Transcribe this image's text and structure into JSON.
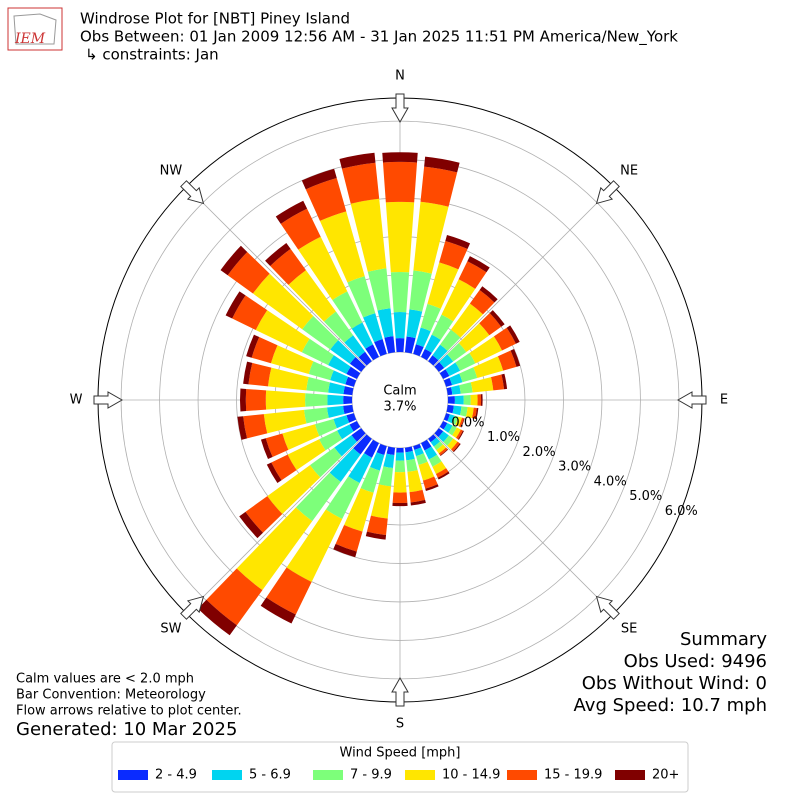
{
  "chart_data": {
    "type": "windrose",
    "title": "Windrose Plot for [NBT] Piney Island",
    "subtitle": "Obs Between: 01 Jan 2009 12:56 AM - 31 Jan 2025 11:51 PM America/New_York",
    "constraint": "↳ constraints: Jan",
    "logo_text": "IEM",
    "calm_label": "Calm",
    "calm_value_label": "3.7%",
    "compass_labels": [
      "N",
      "NE",
      "E",
      "SE",
      "S",
      "SW",
      "W",
      "NW"
    ],
    "x": [
      0,
      10,
      20,
      30,
      40,
      50,
      60,
      70,
      80,
      90,
      100,
      110,
      120,
      130,
      140,
      150,
      160,
      170,
      180,
      190,
      200,
      210,
      220,
      230,
      240,
      250,
      260,
      270,
      280,
      290,
      300,
      310,
      320,
      330,
      340,
      350
    ],
    "ylim": [
      0,
      6.6
    ],
    "yticks": [
      {
        "value": 0,
        "label": "0.0%"
      },
      {
        "value": 1,
        "label": "1.0%"
      },
      {
        "value": 2,
        "label": "2.0%"
      },
      {
        "value": 3,
        "label": "3.0%"
      },
      {
        "value": 4,
        "label": "4.0%"
      },
      {
        "value": 5,
        "label": "5.0%"
      },
      {
        "value": 6,
        "label": "6.0%"
      }
    ],
    "grid": true,
    "legend_title": "Wind Speed [mph]",
    "series": [
      {
        "name": "2 - 4.9",
        "color": "#0a2bff",
        "values": [
          0.36,
          0.41,
          0.26,
          0.23,
          0.19,
          0.17,
          0.18,
          0.16,
          0.12,
          0.18,
          0.16,
          0.1,
          0.12,
          0.14,
          0.11,
          0.21,
          0.1,
          0.12,
          0.12,
          0.19,
          0.24,
          0.42,
          0.5,
          0.31,
          0.21,
          0.2,
          0.24,
          0.23,
          0.23,
          0.23,
          0.3,
          0.36,
          0.3,
          0.36,
          0.4,
          0.42
        ]
      },
      {
        "name": "5 - 6.9",
        "color": "#00d4f0",
        "values": [
          0.68,
          0.71,
          0.45,
          0.41,
          0.34,
          0.29,
          0.31,
          0.28,
          0.22,
          0.23,
          0.2,
          0.13,
          0.15,
          0.18,
          0.14,
          0.26,
          0.17,
          0.21,
          0.21,
          0.34,
          0.42,
          0.73,
          0.88,
          0.55,
          0.36,
          0.35,
          0.42,
          0.41,
          0.4,
          0.41,
          0.53,
          0.63,
          0.53,
          0.63,
          0.7,
          0.73
        ]
      },
      {
        "name": "7 - 9.9",
        "color": "#7dff7a",
        "values": [
          1.04,
          1.02,
          0.64,
          0.58,
          0.48,
          0.42,
          0.44,
          0.4,
          0.31,
          0.18,
          0.16,
          0.1,
          0.12,
          0.14,
          0.11,
          0.21,
          0.24,
          0.3,
          0.3,
          0.48,
          0.6,
          1.04,
          1.26,
          0.78,
          0.52,
          0.5,
          0.6,
          0.58,
          0.57,
          0.58,
          0.76,
          0.9,
          0.76,
          0.9,
          1.0,
          1.04
        ]
      },
      {
        "name": "10 - 14.9",
        "color": "#ffe600",
        "values": [
          1.82,
          1.79,
          1.12,
          1.02,
          0.84,
          0.74,
          0.77,
          0.7,
          0.54,
          0.18,
          0.16,
          0.1,
          0.12,
          0.14,
          0.11,
          0.21,
          0.42,
          0.53,
          0.53,
          0.84,
          1.05,
          1.82,
          2.21,
          1.37,
          0.91,
          0.88,
          1.05,
          1.02,
          1.0,
          1.02,
          1.33,
          1.58,
          1.33,
          1.58,
          1.75,
          1.82
        ]
      },
      {
        "name": "15 - 19.9",
        "color": "#ff4a00",
        "values": [
          1.04,
          0.92,
          0.58,
          0.52,
          0.43,
          0.38,
          0.4,
          0.36,
          0.28,
          0.09,
          0.08,
          0.05,
          0.06,
          0.07,
          0.06,
          0.11,
          0.22,
          0.27,
          0.27,
          0.43,
          0.54,
          0.94,
          1.13,
          0.7,
          0.47,
          0.45,
          0.54,
          0.52,
          0.51,
          0.52,
          0.68,
          0.81,
          0.68,
          0.81,
          0.9,
          0.94
        ]
      },
      {
        "name": "20+",
        "color": "#800000",
        "values": [
          0.25,
          0.26,
          0.16,
          0.15,
          0.12,
          0.11,
          0.11,
          0.1,
          0.08,
          0.04,
          0.04,
          0.02,
          0.03,
          0.03,
          0.02,
          0.05,
          0.06,
          0.08,
          0.08,
          0.12,
          0.15,
          0.26,
          0.32,
          0.2,
          0.13,
          0.13,
          0.15,
          0.15,
          0.14,
          0.15,
          0.19,
          0.23,
          0.19,
          0.23,
          0.25,
          0.26
        ]
      }
    ],
    "notes": [
      "Calm values are < 2.0 mph",
      "Bar Convention: Meteorology",
      "Flow arrows relative to plot center."
    ],
    "generated": "Generated: 10 Mar 2025",
    "summary": [
      "Summary",
      "Obs Used: 9496",
      "Obs Without Wind: 0",
      "Avg Speed: 10.7 mph"
    ]
  }
}
